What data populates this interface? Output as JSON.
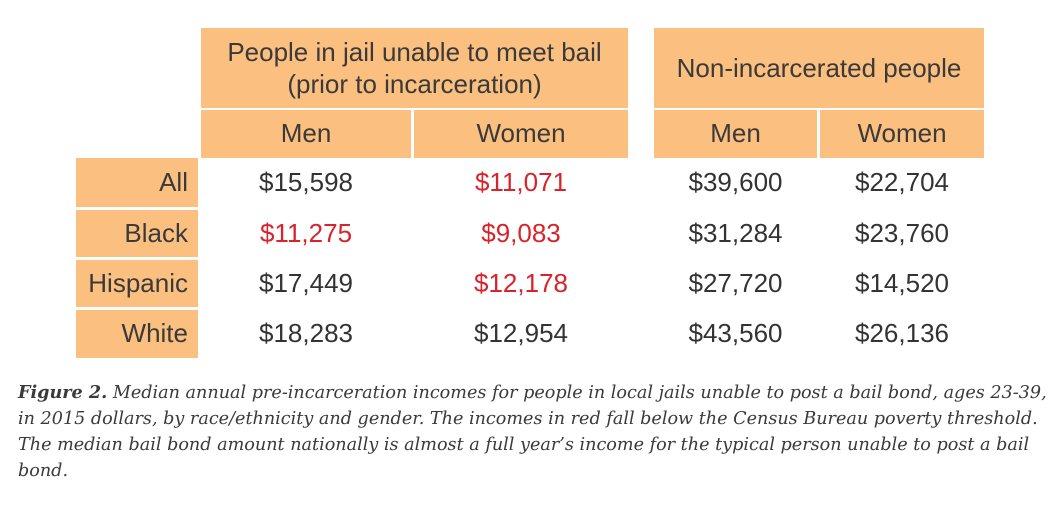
{
  "chart_data": {
    "type": "table",
    "column_groups": [
      {
        "label_lines": [
          "People in jail unable to meet bail",
          "(prior to incarceration)"
        ],
        "columns": [
          "Men",
          "Women"
        ]
      },
      {
        "label_lines": [
          "Non-incarcerated people"
        ],
        "columns": [
          "Men",
          "Women"
        ]
      }
    ],
    "rows": [
      {
        "label": "All",
        "values": [
          "$15,598",
          "$11,071",
          "$39,600",
          "$22,704"
        ],
        "poverty": [
          false,
          true,
          false,
          false
        ]
      },
      {
        "label": "Black",
        "values": [
          "$11,275",
          "$9,083",
          "$31,284",
          "$23,760"
        ],
        "poverty": [
          true,
          true,
          false,
          false
        ]
      },
      {
        "label": "Hispanic",
        "values": [
          "$17,449",
          "$12,178",
          "$27,720",
          "$14,520"
        ],
        "poverty": [
          false,
          true,
          false,
          false
        ]
      },
      {
        "label": "White",
        "values": [
          "$18,283",
          "$12,954",
          "$43,560",
          "$26,136"
        ],
        "poverty": [
          false,
          false,
          false,
          false
        ]
      }
    ],
    "numeric_values": [
      [
        15598,
        11071,
        39600,
        22704
      ],
      [
        11275,
        9083,
        31284,
        23760
      ],
      [
        17449,
        12178,
        27720,
        14520
      ],
      [
        18283,
        12954,
        43560,
        26136
      ]
    ]
  },
  "caption": {
    "label": "Figure 2.",
    "text": " Median annual pre-incarceration incomes for people in local jails unable to post a bail bond, ages 23-39, in 2015 dollars, by race/ethnicity and gender. The incomes in red fall below the Census Bureau poverty threshold. The median bail bond amount nationally is almost a full year’s income for the typical person unable to post a bail bond."
  },
  "colors": {
    "header_fill": "#fbc07f",
    "poverty_text": "#d9232a",
    "normal_text": "#333333"
  }
}
